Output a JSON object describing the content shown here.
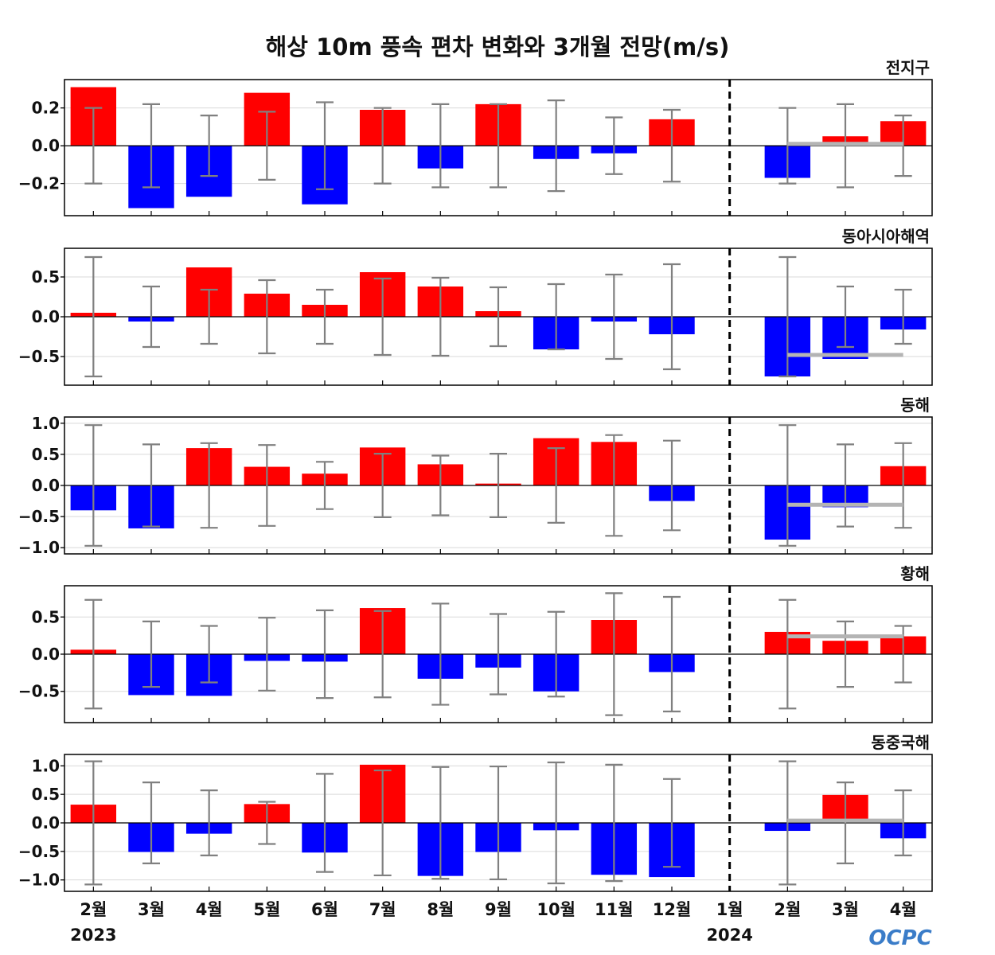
{
  "title": "해상 10m 풍속 편차 변화와 3개월 전망(m/s)",
  "logo": "OCPC",
  "colors": {
    "positive": "#ff0000",
    "negative": "#0000ff",
    "errorbar": "#808080",
    "forecast_line": "#b4b4b4",
    "grid": "#d9d9d9"
  },
  "x_labels": [
    "2월",
    "3월",
    "4월",
    "5월",
    "6월",
    "7월",
    "8월",
    "9월",
    "10월",
    "11월",
    "12월",
    "1월",
    "2월",
    "3월",
    "4월"
  ],
  "year_labels": [
    {
      "text": "2023",
      "index": 0
    },
    {
      "text": "2024",
      "index": 11
    }
  ],
  "divider_after_index": 11,
  "chart_data": [
    {
      "type": "bar",
      "title": "전지구",
      "ylim": [
        -0.37,
        0.35
      ],
      "yticks": [
        0.2,
        0.0,
        -0.2
      ],
      "ytick_labels": [
        "0.2",
        "0.0",
        "−0.2"
      ],
      "categories": [
        "2월",
        "3월",
        "4월",
        "5월",
        "6월",
        "7월",
        "8월",
        "9월",
        "10월",
        "11월",
        "12월",
        "1월",
        "2월",
        "3월",
        "4월"
      ],
      "values": [
        0.31,
        -0.33,
        -0.27,
        0.28,
        -0.31,
        0.19,
        -0.12,
        0.22,
        -0.07,
        -0.04,
        0.14,
        0,
        -0.17,
        0.05,
        0.13
      ],
      "error_half": [
        0.2,
        0.22,
        0.16,
        0.18,
        0.23,
        0.2,
        0.22,
        0.22,
        0.24,
        0.15,
        0.19,
        null,
        0.2,
        0.22,
        0.16
      ],
      "forecast_mean": 0.01
    },
    {
      "type": "bar",
      "title": "동아시아해역",
      "ylim": [
        -0.86,
        0.86
      ],
      "yticks": [
        0.5,
        0.0,
        -0.5
      ],
      "ytick_labels": [
        "0.5",
        "0.0",
        "−0.5"
      ],
      "categories": [
        "2월",
        "3월",
        "4월",
        "5월",
        "6월",
        "7월",
        "8월",
        "9월",
        "10월",
        "11월",
        "12월",
        "1월",
        "2월",
        "3월",
        "4월"
      ],
      "values": [
        0.05,
        -0.06,
        0.62,
        0.29,
        0.15,
        0.56,
        0.38,
        0.07,
        -0.41,
        -0.06,
        -0.22,
        0,
        -0.75,
        -0.53,
        -0.16
      ],
      "error_half": [
        0.75,
        0.38,
        0.34,
        0.46,
        0.34,
        0.48,
        0.49,
        0.37,
        0.41,
        0.53,
        0.66,
        null,
        0.75,
        0.38,
        0.34
      ],
      "forecast_mean": -0.48
    },
    {
      "type": "bar",
      "title": "동해",
      "ylim": [
        -1.1,
        1.1
      ],
      "yticks": [
        1.0,
        0.5,
        0.0,
        -0.5,
        -1.0
      ],
      "ytick_labels": [
        "1.0",
        "0.5",
        "0.0",
        "−0.5",
        "−1.0"
      ],
      "categories": [
        "2월",
        "3월",
        "4월",
        "5월",
        "6월",
        "7월",
        "8월",
        "9월",
        "10월",
        "11월",
        "12월",
        "1월",
        "2월",
        "3월",
        "4월"
      ],
      "values": [
        -0.4,
        -0.69,
        0.6,
        0.3,
        0.19,
        0.61,
        0.34,
        0.03,
        0.76,
        0.7,
        -0.25,
        0,
        -0.87,
        -0.35,
        0.31
      ],
      "error_half": [
        0.97,
        0.66,
        0.68,
        0.65,
        0.38,
        0.51,
        0.48,
        0.51,
        0.6,
        0.81,
        0.72,
        null,
        0.97,
        0.66,
        0.68
      ],
      "forecast_mean": -0.31
    },
    {
      "type": "bar",
      "title": "황해",
      "ylim": [
        -0.92,
        0.92
      ],
      "yticks": [
        0.5,
        0.0,
        -0.5
      ],
      "ytick_labels": [
        "0.5",
        "0.0",
        "−0.5"
      ],
      "categories": [
        "2월",
        "3월",
        "4월",
        "5월",
        "6월",
        "7월",
        "8월",
        "9월",
        "10월",
        "11월",
        "12월",
        "1월",
        "2월",
        "3월",
        "4월"
      ],
      "values": [
        0.06,
        -0.55,
        -0.56,
        -0.09,
        -0.1,
        0.62,
        -0.33,
        -0.18,
        -0.5,
        0.46,
        -0.24,
        0,
        0.3,
        0.18,
        0.24
      ],
      "error_half": [
        0.73,
        0.44,
        0.38,
        0.49,
        0.59,
        0.58,
        0.68,
        0.54,
        0.57,
        0.82,
        0.77,
        null,
        0.73,
        0.44,
        0.38
      ],
      "forecast_mean": 0.24
    },
    {
      "type": "bar",
      "title": "동중국해",
      "ylim": [
        -1.2,
        1.2
      ],
      "yticks": [
        1.0,
        0.5,
        0.0,
        -0.5,
        -1.0
      ],
      "ytick_labels": [
        "1.0",
        "0.5",
        "0.0",
        "−0.5",
        "−1.0"
      ],
      "categories": [
        "2월",
        "3월",
        "4월",
        "5월",
        "6월",
        "7월",
        "8월",
        "9월",
        "10월",
        "11월",
        "12월",
        "1월",
        "2월",
        "3월",
        "4월"
      ],
      "values": [
        0.32,
        -0.51,
        -0.19,
        0.33,
        -0.52,
        1.02,
        -0.93,
        -0.51,
        -0.13,
        -0.91,
        -0.95,
        0,
        -0.14,
        0.49,
        -0.27
      ],
      "error_half": [
        1.08,
        0.71,
        0.57,
        0.37,
        0.86,
        0.92,
        0.98,
        0.99,
        1.06,
        1.02,
        0.77,
        null,
        1.08,
        0.71,
        0.57
      ],
      "forecast_mean": 0.04
    }
  ]
}
